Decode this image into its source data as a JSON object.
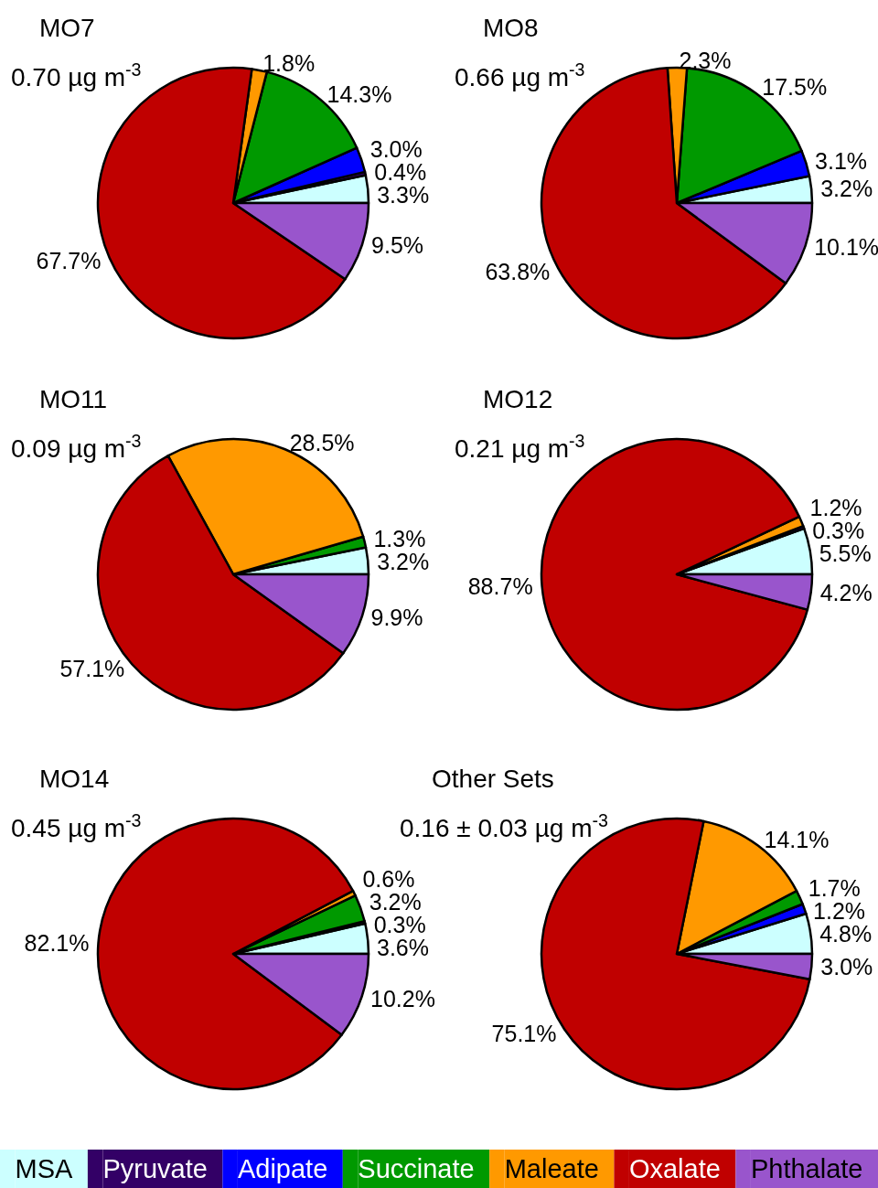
{
  "chart_data": [
    {
      "type": "pie",
      "title": "MO7",
      "subtitle": "0.70 µg m$^{-3}$",
      "legend": "bottom",
      "categories": [
        "MSA",
        "Pyruvate",
        "Adipate",
        "Succinate",
        "Maleate",
        "Oxalate",
        "Phthalate"
      ],
      "colors": [
        "#ccffff",
        "#330066",
        "#0000ff",
        "#009900",
        "#ff9900",
        "#c00000",
        "#9955cc"
      ],
      "values": [
        3.3,
        0.4,
        3.0,
        14.3,
        1.8,
        67.7,
        9.5
      ],
      "value_labels": [
        "3.3%",
        "0.4%",
        "3.0%",
        "14.3%",
        "1.8%",
        "67.7%",
        "9.5%"
      ]
    },
    {
      "type": "pie",
      "title": "MO8",
      "subtitle": "0.66 µg m$^{-3}$",
      "colors": [
        "#ccffff",
        "#0000ff",
        "#009900",
        "#ff9900",
        "#c00000",
        "#9955cc"
      ],
      "values": [
        3.2,
        3.1,
        17.5,
        2.3,
        63.8,
        10.1
      ],
      "value_labels": [
        "3.2%",
        "3.1%",
        "17.5%",
        "2.3%",
        "63.8%",
        "10.1%"
      ]
    },
    {
      "type": "pie",
      "title": "MO11",
      "subtitle": "0.09 µg m$^{-3}$",
      "colors": [
        "#ccffff",
        "#009900",
        "#ff9900",
        "#c00000",
        "#9955cc"
      ],
      "values": [
        3.2,
        1.3,
        28.5,
        57.1,
        9.9
      ],
      "value_labels": [
        "3.2%",
        "1.3%",
        "28.5%",
        "57.1%",
        "9.9%"
      ]
    },
    {
      "type": "pie",
      "title": "MO12",
      "subtitle": "0.21 µg m$^{-3}$",
      "colors": [
        "#ccffff",
        "#330066",
        "#ff9900",
        "#c00000",
        "#9955cc"
      ],
      "values": [
        5.5,
        0.3,
        1.2,
        88.7,
        4.2
      ],
      "value_labels": [
        "5.5%",
        "0.3%",
        "1.2%",
        "88.7%",
        "4.2%"
      ]
    },
    {
      "type": "pie",
      "title": "MO14",
      "subtitle": "0.45 µg m$^{-3}$",
      "colors": [
        "#ccffff",
        "#330066",
        "#009900",
        "#ff9900",
        "#c00000",
        "#9955cc"
      ],
      "values": [
        3.6,
        0.3,
        3.2,
        0.6,
        82.1,
        10.2
      ],
      "value_labels": [
        "3.6%",
        "0.3%",
        "3.2%",
        "0.6%",
        "82.1%",
        "10.2%"
      ]
    },
    {
      "type": "pie",
      "title": "Other Sets",
      "subtitle": "0.16 ± 0.03 µg m$^{-3}$",
      "colors": [
        "#ccffff",
        "#0000ff",
        "#009900",
        "#ff9900",
        "#c00000",
        "#9955cc"
      ],
      "values": [
        4.8,
        1.2,
        1.7,
        14.1,
        75.1,
        3.0
      ],
      "value_labels": [
        "4.8%",
        "1.2%",
        "1.7%",
        "14.1%",
        "75.1%",
        "3.0%"
      ]
    }
  ]
}
